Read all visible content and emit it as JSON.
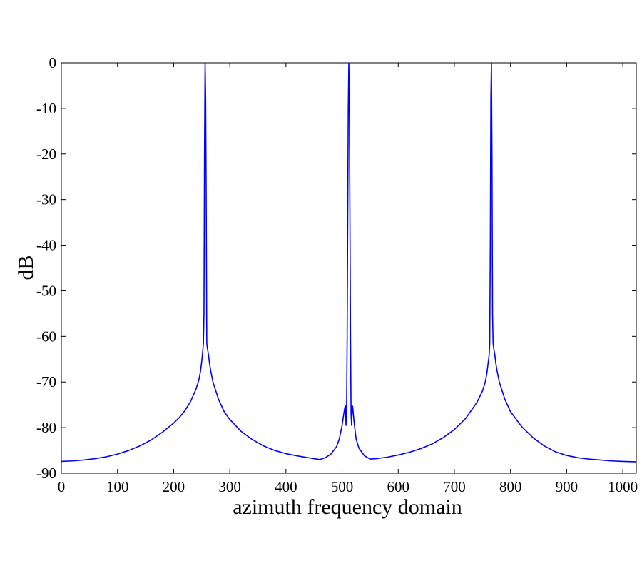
{
  "chart_data": {
    "type": "line",
    "title": "",
    "xlabel": "azimuth frequency domain",
    "ylabel": "dB",
    "xlim": [
      0,
      1024
    ],
    "ylim": [
      -90,
      0
    ],
    "xticks": [
      0,
      100,
      200,
      300,
      400,
      500,
      600,
      700,
      800,
      900,
      1000
    ],
    "yticks": [
      0,
      -10,
      -20,
      -30,
      -40,
      -50,
      -60,
      -70,
      -80,
      -90
    ],
    "xtick_labels": [
      "0",
      "100",
      "200",
      "300",
      "400",
      "500",
      "600",
      "700",
      "800",
      "900",
      "1000"
    ],
    "ytick_labels": [
      "0",
      "-10",
      "-20",
      "-30",
      "-40",
      "-50",
      "-60",
      "-70",
      "-80",
      "-90"
    ],
    "grid": false,
    "series": [
      {
        "color": "#0000ff",
        "x": [
          0,
          20,
          40,
          60,
          80,
          100,
          120,
          140,
          160,
          180,
          200,
          210,
          220,
          230,
          240,
          245,
          248,
          250,
          252,
          253,
          254,
          255,
          256,
          257,
          258,
          259,
          260,
          262,
          264,
          266,
          270,
          280,
          290,
          300,
          320,
          340,
          360,
          380,
          400,
          420,
          440,
          460,
          470,
          480,
          490,
          495,
          500,
          503,
          505,
          506,
          507,
          508,
          509,
          510,
          511,
          512,
          513,
          514,
          515,
          516,
          517,
          518,
          519,
          520,
          522,
          525,
          530,
          540,
          550,
          560,
          580,
          600,
          620,
          640,
          660,
          680,
          700,
          720,
          740,
          750,
          755,
          758,
          760,
          762,
          763,
          764,
          765,
          766,
          767,
          768,
          769,
          770,
          772,
          774,
          776,
          780,
          790,
          800,
          820,
          840,
          860,
          880,
          900,
          920,
          940,
          960,
          980,
          1000,
          1024
        ],
        "y": [
          -87.4,
          -87.3,
          -87.1,
          -86.8,
          -86.4,
          -85.8,
          -85,
          -84,
          -82.7,
          -81,
          -79,
          -77.8,
          -76.3,
          -74.3,
          -71.5,
          -69.5,
          -67.5,
          -65.5,
          -63,
          -61.5,
          -55,
          -20,
          0,
          -8,
          -30,
          -61.5,
          -62.5,
          -64,
          -66,
          -67.5,
          -70,
          -73.8,
          -76.5,
          -78.2,
          -80.8,
          -82.6,
          -84,
          -85,
          -85.7,
          -86.2,
          -86.6,
          -87,
          -86.6,
          -85.8,
          -84.2,
          -82.5,
          -79.5,
          -77,
          -75.5,
          -75.2,
          -79.5,
          -77,
          -60,
          -35,
          -10,
          0,
          -10,
          -35,
          -60,
          -77,
          -79.5,
          -75.2,
          -75.5,
          -77,
          -79.5,
          -82.5,
          -84.5,
          -86.2,
          -86.9,
          -86.8,
          -86.5,
          -86,
          -85.4,
          -84.6,
          -83.6,
          -82.2,
          -80.4,
          -78,
          -74.5,
          -72,
          -70,
          -68,
          -66,
          -64,
          -61.5,
          -40,
          -8,
          0,
          -20,
          -55,
          -61.5,
          -62.5,
          -64,
          -66,
          -67.5,
          -70,
          -73.8,
          -76.5,
          -79.8,
          -82.2,
          -84,
          -85.3,
          -86.1,
          -86.6,
          -86.9,
          -87.1,
          -87.3,
          -87.4,
          -87.5
        ]
      }
    ]
  }
}
